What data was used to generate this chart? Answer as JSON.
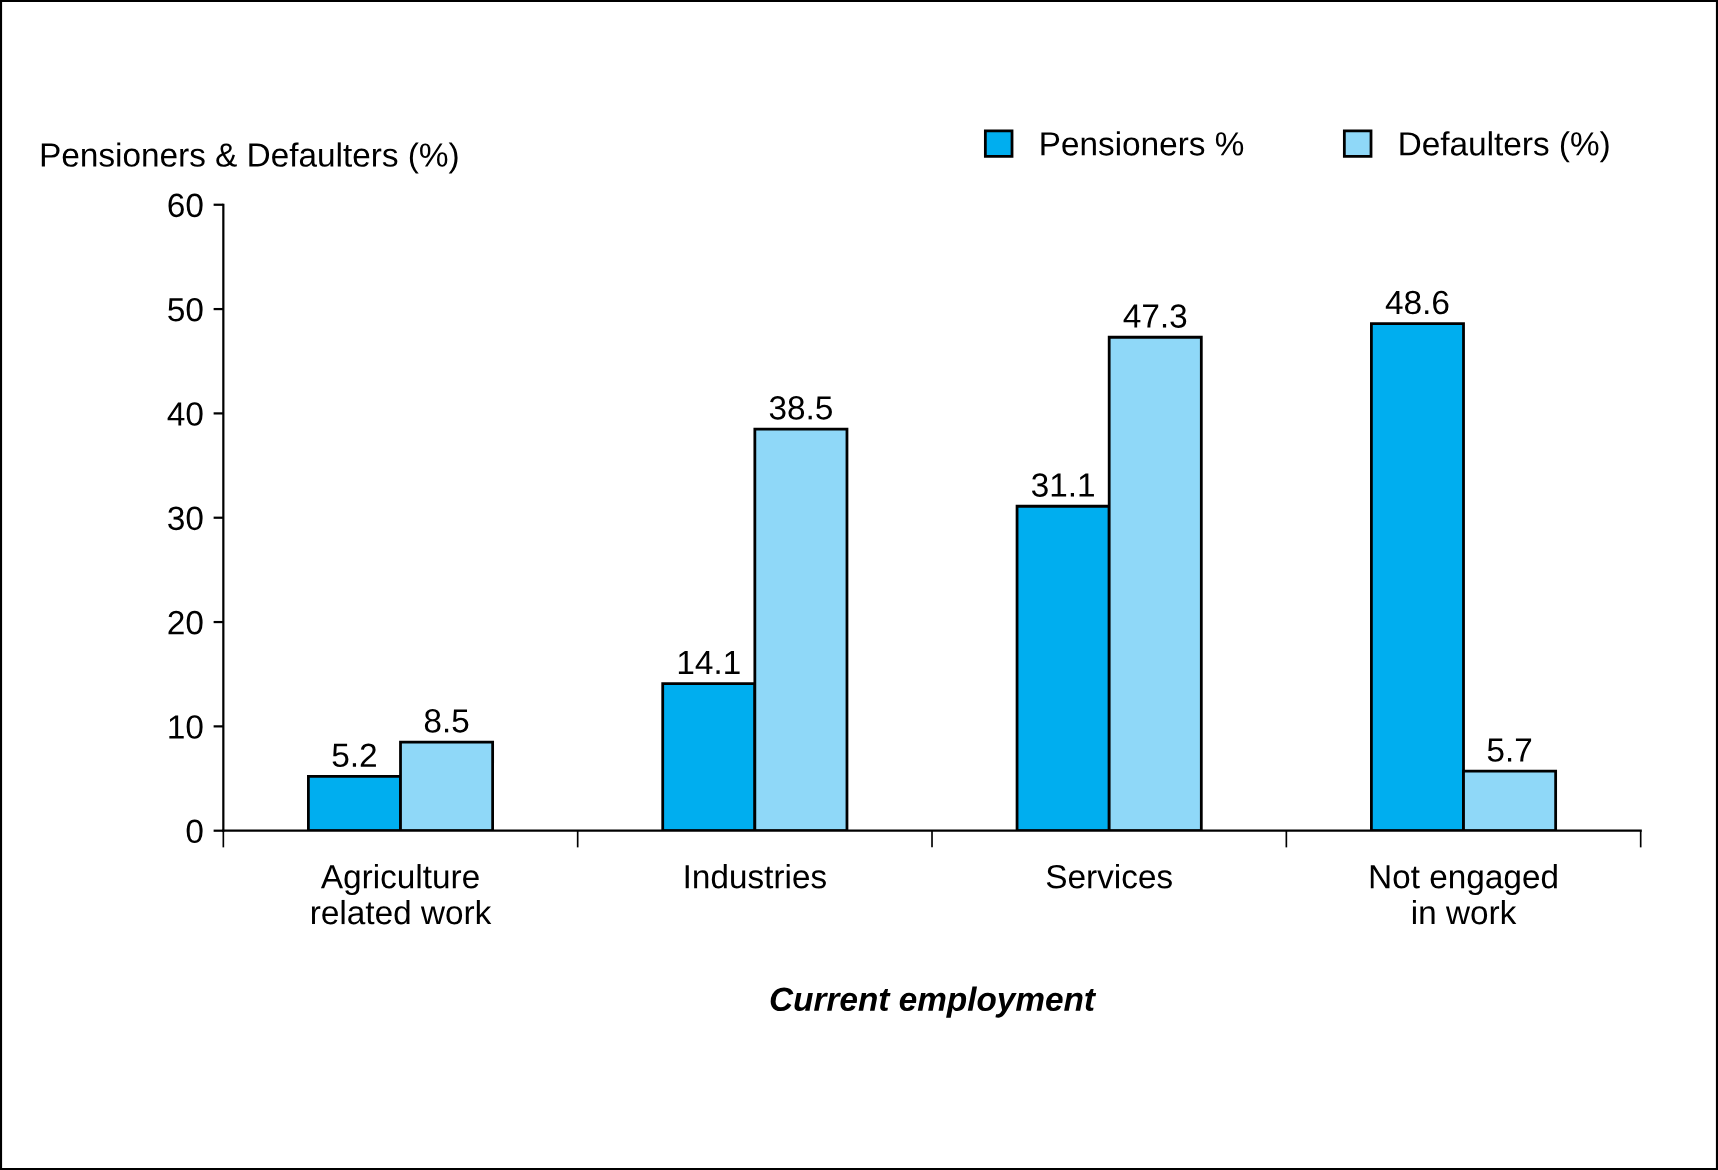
{
  "chart_data": {
    "type": "bar",
    "ylabel": "Pensioners & Defaulters (%)",
    "xlabel": "Current employment",
    "categories": [
      "Agriculture\nrelated work",
      "Industries",
      "Services",
      "Not engaged\nin work"
    ],
    "series": [
      {
        "name": "Pensioners %",
        "color": "#00aeef",
        "values": [
          5.2,
          14.1,
          31.1,
          48.6
        ]
      },
      {
        "name": "Defaulters (%)",
        "color": "#8fd8f8",
        "values": [
          8.5,
          38.5,
          47.3,
          5.7
        ]
      }
    ],
    "ylim": [
      0,
      60
    ],
    "yticks": [
      0,
      10,
      20,
      30,
      40,
      50,
      60
    ],
    "data_labels": true,
    "legend": "top right",
    "grid": false
  }
}
